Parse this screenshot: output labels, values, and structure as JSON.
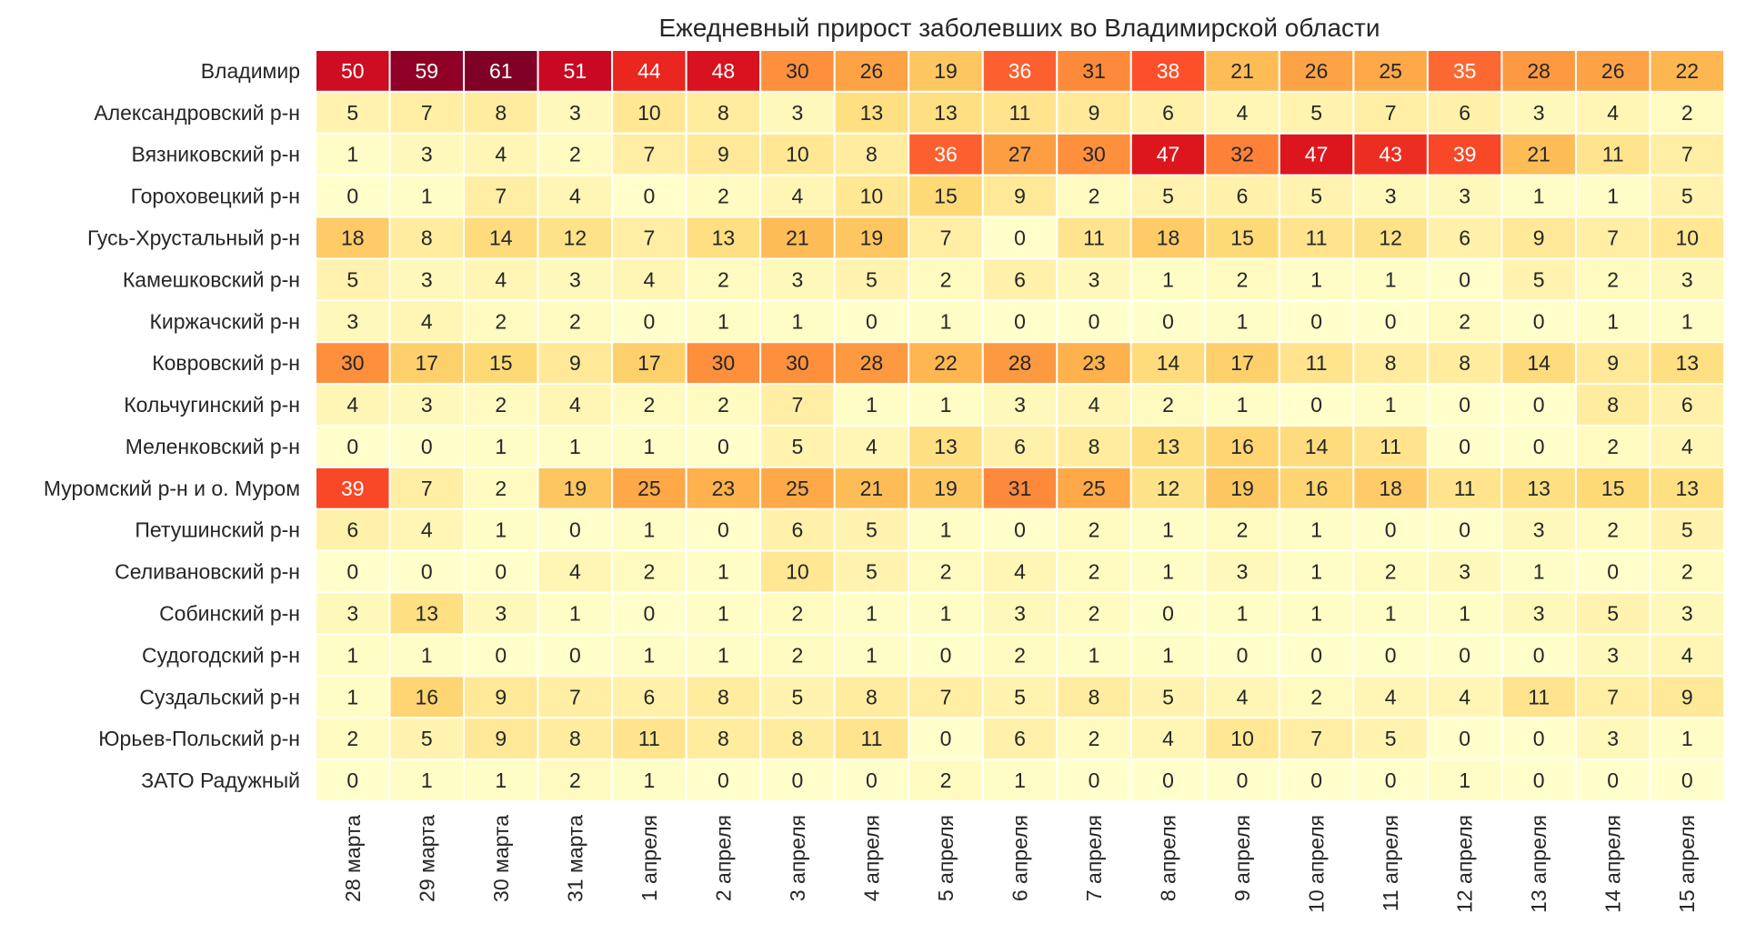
{
  "chart_data": {
    "type": "heatmap",
    "title": "Ежедневный прирост заболевших во Владимирской области",
    "xlabel": "",
    "ylabel": "",
    "colormap": "YlOrRd",
    "value_range": [
      0,
      61
    ],
    "columns": [
      "28 марта",
      "29 марта",
      "30 марта",
      "31 марта",
      "1 апреля",
      "2 апреля",
      "3 апреля",
      "4 апреля",
      "5 апреля",
      "6 апреля",
      "7 апреля",
      "8 апреля",
      "9 апреля",
      "10 апреля",
      "11 апреля",
      "12 апреля",
      "13 апреля",
      "14 апреля",
      "15 апреля"
    ],
    "rows": [
      "Владимир",
      "Александровский р-н",
      "Вязниковский р-н",
      "Гороховецкий р-н",
      "Гусь-Хрустальный р-н",
      "Камешковский р-н",
      "Киржачский р-н",
      "Ковровский р-н",
      "Кольчугинский р-н",
      "Меленковский р-н",
      "Муромский р-н и о. Муром",
      "Петушинский р-н",
      "Селивановский р-н",
      "Собинский р-н",
      "Судогодский р-н",
      "Суздальский р-н",
      "Юрьев-Польский р-н",
      "ЗАТО Радужный"
    ],
    "values": [
      [
        50,
        59,
        61,
        51,
        44,
        48,
        30,
        26,
        19,
        36,
        31,
        38,
        21,
        26,
        25,
        35,
        28,
        26,
        22
      ],
      [
        5,
        7,
        8,
        3,
        10,
        8,
        3,
        13,
        13,
        11,
        9,
        6,
        4,
        5,
        7,
        6,
        3,
        4,
        2
      ],
      [
        1,
        3,
        4,
        2,
        7,
        9,
        10,
        8,
        36,
        27,
        30,
        47,
        32,
        47,
        43,
        39,
        21,
        11,
        7
      ],
      [
        0,
        1,
        7,
        4,
        0,
        2,
        4,
        10,
        15,
        9,
        2,
        5,
        6,
        5,
        3,
        3,
        1,
        1,
        5
      ],
      [
        18,
        8,
        14,
        12,
        7,
        13,
        21,
        19,
        7,
        0,
        11,
        18,
        15,
        11,
        12,
        6,
        9,
        7,
        10
      ],
      [
        5,
        3,
        4,
        3,
        4,
        2,
        3,
        5,
        2,
        6,
        3,
        1,
        2,
        1,
        1,
        0,
        5,
        2,
        3
      ],
      [
        3,
        4,
        2,
        2,
        0,
        1,
        1,
        0,
        1,
        0,
        0,
        0,
        1,
        0,
        0,
        2,
        0,
        1,
        1
      ],
      [
        30,
        17,
        15,
        9,
        17,
        30,
        30,
        28,
        22,
        28,
        23,
        14,
        17,
        11,
        8,
        8,
        14,
        9,
        13
      ],
      [
        4,
        3,
        2,
        4,
        2,
        2,
        7,
        1,
        1,
        3,
        4,
        2,
        1,
        0,
        1,
        0,
        0,
        8,
        6
      ],
      [
        0,
        0,
        1,
        1,
        1,
        0,
        5,
        4,
        13,
        6,
        8,
        13,
        16,
        14,
        11,
        0,
        0,
        2,
        4
      ],
      [
        39,
        7,
        2,
        19,
        25,
        23,
        25,
        21,
        19,
        31,
        25,
        12,
        19,
        16,
        18,
        11,
        13,
        15,
        13
      ],
      [
        6,
        4,
        1,
        0,
        1,
        0,
        6,
        5,
        1,
        0,
        2,
        1,
        2,
        1,
        0,
        0,
        3,
        2,
        5
      ],
      [
        0,
        0,
        0,
        4,
        2,
        1,
        10,
        5,
        2,
        4,
        2,
        1,
        3,
        1,
        2,
        3,
        1,
        0,
        2
      ],
      [
        3,
        13,
        3,
        1,
        0,
        1,
        2,
        1,
        1,
        3,
        2,
        0,
        1,
        1,
        1,
        1,
        3,
        5,
        3
      ],
      [
        1,
        1,
        0,
        0,
        1,
        1,
        2,
        1,
        0,
        2,
        1,
        1,
        0,
        0,
        0,
        0,
        0,
        3,
        4
      ],
      [
        1,
        16,
        9,
        7,
        6,
        8,
        5,
        8,
        7,
        5,
        8,
        5,
        4,
        2,
        4,
        4,
        11,
        7,
        9
      ],
      [
        2,
        5,
        9,
        8,
        11,
        8,
        8,
        11,
        0,
        6,
        2,
        4,
        10,
        7,
        5,
        0,
        0,
        3,
        1
      ],
      [
        0,
        1,
        1,
        2,
        1,
        0,
        0,
        0,
        2,
        1,
        0,
        0,
        0,
        0,
        0,
        1,
        0,
        0,
        0
      ]
    ]
  }
}
